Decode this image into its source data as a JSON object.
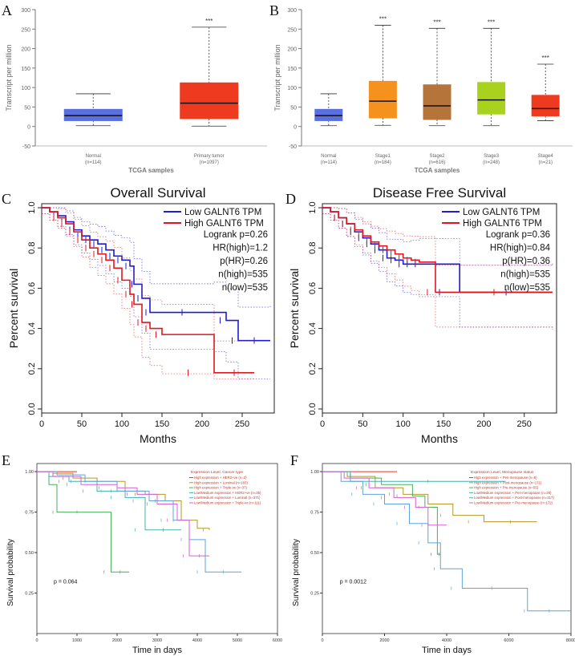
{
  "chart_data": [
    {
      "panel": "A",
      "type": "box",
      "ylabel": "Transcript per million",
      "xlabel": "TCGA samples",
      "ylim": [
        -50,
        300
      ],
      "yticks": [
        -50,
        0,
        50,
        100,
        150,
        200,
        250,
        300
      ],
      "groups": [
        {
          "label": "Normal",
          "n": "(n=114)",
          "min": 2,
          "q1": 15,
          "median": 28,
          "q3": 44,
          "max": 84,
          "color": "#5b6fe0",
          "sig": ""
        },
        {
          "label": "Primary tumor",
          "n": "(n=1097)",
          "min": 1,
          "q1": 20,
          "median": 60,
          "q3": 112,
          "max": 255,
          "color": "#ee3a1e",
          "sig": "***"
        }
      ]
    },
    {
      "panel": "B",
      "type": "box",
      "ylabel": "Transcript per million",
      "xlabel": "TCGA samples",
      "ylim": [
        -50,
        300
      ],
      "yticks": [
        -50,
        0,
        50,
        100,
        150,
        200,
        250,
        300
      ],
      "groups": [
        {
          "label": "Normal",
          "n": "(n=114)",
          "min": 2,
          "q1": 15,
          "median": 28,
          "q3": 44,
          "max": 84,
          "color": "#5b6fe0",
          "sig": ""
        },
        {
          "label": "Stage1",
          "n": "(n=184)",
          "min": 3,
          "q1": 22,
          "median": 65,
          "q3": 116,
          "max": 260,
          "color": "#f5921e",
          "sig": "***"
        },
        {
          "label": "Stage2",
          "n": "(n=616)",
          "min": 2,
          "q1": 18,
          "median": 53,
          "q3": 107,
          "max": 252,
          "color": "#b4743a",
          "sig": "***"
        },
        {
          "label": "Stage3",
          "n": "(n=248)",
          "min": 2,
          "q1": 32,
          "median": 68,
          "q3": 113,
          "max": 252,
          "color": "#a8d21e",
          "sig": "***"
        },
        {
          "label": "Stage4",
          "n": "(n=21)",
          "min": 15,
          "q1": 27,
          "median": 46,
          "q3": 80,
          "max": 160,
          "color": "#ee3a1e",
          "sig": "***"
        }
      ]
    },
    {
      "panel": "C",
      "type": "line",
      "title": "Overall Survival",
      "xlabel": "Months",
      "ylabel": "Percent survival",
      "xlim": [
        0,
        290
      ],
      "ylim": [
        -0.02,
        1.02
      ],
      "xticks": [
        0,
        50,
        100,
        150,
        200,
        250
      ],
      "yticks": [
        0.0,
        0.2,
        0.4,
        0.6,
        0.8,
        1.0
      ],
      "legend": [
        "Low GALNT6 TPM",
        "High GALNT6 TPM"
      ],
      "stats": [
        "Logrank p=0.26",
        "HR(high)=1.2",
        "p(HR)=0.26",
        "n(high)=535",
        "n(low)=535"
      ],
      "series": [
        {
          "name": "Low GALNT6 TPM",
          "color": "#1c1cd4",
          "x": [
            0,
            10,
            20,
            30,
            40,
            50,
            60,
            70,
            80,
            90,
            100,
            110,
            115,
            125,
            135,
            215,
            230,
            245,
            285
          ],
          "y": [
            1.0,
            0.98,
            0.96,
            0.93,
            0.89,
            0.86,
            0.84,
            0.82,
            0.79,
            0.76,
            0.74,
            0.71,
            0.62,
            0.55,
            0.48,
            0.48,
            0.44,
            0.34,
            0.34
          ]
        },
        {
          "name": "High GALNT6 TPM",
          "color": "#e0171e",
          "x": [
            0,
            10,
            20,
            30,
            40,
            50,
            60,
            70,
            80,
            90,
            100,
            110,
            115,
            125,
            135,
            150,
            215,
            265
          ],
          "y": [
            1.0,
            0.98,
            0.95,
            0.92,
            0.88,
            0.84,
            0.8,
            0.77,
            0.74,
            0.7,
            0.64,
            0.57,
            0.52,
            0.43,
            0.4,
            0.37,
            0.18,
            0.18
          ]
        }
      ]
    },
    {
      "panel": "D",
      "type": "line",
      "title": "Disease Free Survival",
      "xlabel": "Months",
      "ylabel": "Percent survival",
      "xlim": [
        0,
        290
      ],
      "ylim": [
        -0.02,
        1.02
      ],
      "xticks": [
        0,
        50,
        100,
        150,
        200,
        250
      ],
      "yticks": [
        0.0,
        0.2,
        0.4,
        0.6,
        0.8,
        1.0
      ],
      "legend": [
        "Low GALNT6 TPM",
        "High GALNT6 TPM"
      ],
      "stats": [
        "Logrank p=0.36",
        "HR(high)=0.84",
        "p(HR)=0.36",
        "n(high)=535",
        "n(low)=535"
      ],
      "series": [
        {
          "name": "Low GALNT6 TPM",
          "color": "#1c1cd4",
          "x": [
            0,
            10,
            20,
            30,
            40,
            50,
            60,
            70,
            80,
            90,
            100,
            110,
            120,
            170,
            285
          ],
          "y": [
            1.0,
            0.98,
            0.95,
            0.92,
            0.88,
            0.85,
            0.82,
            0.79,
            0.75,
            0.74,
            0.72,
            0.72,
            0.72,
            0.58,
            0.58
          ]
        },
        {
          "name": "High GALNT6 TPM",
          "color": "#e0171e",
          "x": [
            0,
            10,
            20,
            30,
            40,
            50,
            60,
            70,
            80,
            90,
            100,
            110,
            120,
            140,
            285
          ],
          "y": [
            1.0,
            0.98,
            0.95,
            0.92,
            0.89,
            0.86,
            0.83,
            0.81,
            0.79,
            0.77,
            0.75,
            0.74,
            0.73,
            0.58,
            0.58
          ]
        }
      ]
    },
    {
      "panel": "E",
      "type": "line",
      "xlabel": "Time in days",
      "ylabel": "Survival probability",
      "xlim": [
        0,
        6000
      ],
      "ylim": [
        0,
        1.05
      ],
      "xticks": [
        0,
        1000,
        2000,
        3000,
        4000,
        5000,
        6000
      ],
      "yticks": [
        0.25,
        0.5,
        0.75,
        1.0
      ],
      "ytick_labels": [
        "0.25",
        "0.50",
        "0.75",
        "1.00"
      ],
      "pvalue": "p = 0.064",
      "legend_title": "Expression Level, Cancer type",
      "series": [
        {
          "name": "High expression + HER2+ve (n=2)",
          "color": "#e2392d",
          "x": [
            0,
            1000
          ],
          "y": [
            1.0,
            1.0
          ]
        },
        {
          "name": "High expression + Luminal (n=183)",
          "color": "#b5962a",
          "x": [
            0,
            400,
            900,
            1500,
            2200,
            2700,
            3200,
            3600,
            4000,
            4300
          ],
          "y": [
            1.0,
            0.99,
            0.96,
            0.94,
            0.88,
            0.86,
            0.82,
            0.7,
            0.65,
            0.64
          ]
        },
        {
          "name": "High expression + Triple-ve (n=37)",
          "color": "#4cad5d",
          "x": [
            0,
            300,
            500,
            1500,
            1850,
            2300
          ],
          "y": [
            1.0,
            0.92,
            0.75,
            0.75,
            0.38,
            0.38
          ]
        },
        {
          "name": "Low/Medium expression + HER2+ve (n=35)",
          "color": "#3fb3b0",
          "x": [
            0,
            300,
            800,
            1500,
            2200,
            2700,
            3600
          ],
          "y": [
            1.0,
            0.97,
            0.94,
            0.88,
            0.84,
            0.64,
            0.64
          ]
        },
        {
          "name": "Low/Medium expression + Luminal (n=371)",
          "color": "#5da4e0",
          "x": [
            0,
            500,
            1200,
            2000,
            2800,
            3400,
            3800,
            4200,
            5100
          ],
          "y": [
            1.0,
            0.98,
            0.94,
            0.88,
            0.82,
            0.7,
            0.58,
            0.38,
            0.38
          ]
        },
        {
          "name": "Low/Medium expression + Triple-ve (n=111)",
          "color": "#d561d8",
          "x": [
            0,
            400,
            1100,
            2000,
            2500,
            3000,
            3500,
            3800,
            4300
          ],
          "y": [
            1.0,
            0.97,
            0.92,
            0.9,
            0.86,
            0.8,
            0.7,
            0.48,
            0.48
          ]
        }
      ]
    },
    {
      "panel": "F",
      "type": "line",
      "xlabel": "Time in days",
      "ylabel": "Survival probability",
      "xlim": [
        0,
        8000
      ],
      "ylim": [
        0,
        1.05
      ],
      "xticks": [
        0,
        2000,
        4000,
        6000,
        8000
      ],
      "yticks": [
        0.25,
        0.5,
        0.75,
        1.0
      ],
      "ytick_labels": [
        "0.25",
        "0.50",
        "0.75",
        "1.00"
      ],
      "pvalue": "p = 0.0012",
      "legend_title": "Expression Level, Menopause status",
      "series": [
        {
          "name": "High expression + Peri-menopause (n=6)",
          "color": "#e2392d",
          "x": [
            0,
            2400
          ],
          "y": [
            1.0,
            1.0
          ]
        },
        {
          "name": "High expression + Post-menopause (n=171)",
          "color": "#b5962a",
          "x": [
            0,
            800,
            1700,
            2600,
            3400,
            4200,
            5200,
            6900
          ],
          "y": [
            1.0,
            0.97,
            0.9,
            0.86,
            0.8,
            0.73,
            0.69,
            0.69
          ]
        },
        {
          "name": "High expression + Pre-menopause (n=55)",
          "color": "#4cad5d",
          "x": [
            0,
            900,
            1900,
            2900,
            3300,
            3700,
            3800
          ],
          "y": [
            1.0,
            0.96,
            0.92,
            0.85,
            0.78,
            0.49,
            0.49
          ]
        },
        {
          "name": "Low/Medium expression + Peri-menopause (n=28)",
          "color": "#3fb3b0",
          "x": [
            0,
            900,
            5900
          ],
          "y": [
            1.0,
            0.94,
            0.94
          ]
        },
        {
          "name": "Low/Medium expression + Post-menopause (n=317)",
          "color": "#5da4e0",
          "x": [
            0,
            600,
            1300,
            2000,
            2800,
            3400,
            3800,
            4500,
            6400,
            6600,
            8000
          ],
          "y": [
            1.0,
            0.94,
            0.86,
            0.8,
            0.68,
            0.56,
            0.4,
            0.28,
            0.28,
            0.14,
            0.14
          ]
        },
        {
          "name": "Low/Medium expression + Pre-menopause (n=172)",
          "color": "#d561d8",
          "x": [
            0,
            700,
            1500,
            2300,
            3000,
            3400,
            4000
          ],
          "y": [
            1.0,
            0.96,
            0.9,
            0.84,
            0.78,
            0.67,
            0.67
          ]
        }
      ]
    }
  ]
}
